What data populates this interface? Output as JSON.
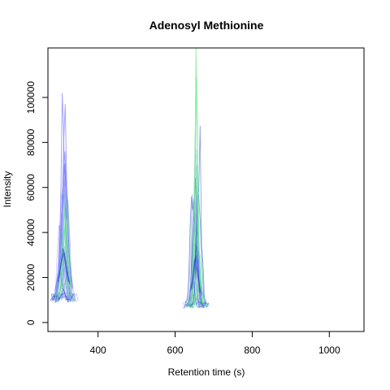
{
  "chart_data": {
    "type": "line",
    "title": "Adenosyl Methionine",
    "xlabel": "Retention time (s)",
    "ylabel": "Intensity",
    "xlim": [
      270,
      1090
    ],
    "ylim": [
      -4000,
      122000
    ],
    "xticks": [
      400,
      600,
      800,
      1000
    ],
    "yticks": [
      0,
      20000,
      40000,
      60000,
      80000,
      100000
    ],
    "xtick_labels": [
      "400",
      "600",
      "800",
      "1000"
    ],
    "ytick_labels": [
      "0",
      "20000",
      "40000",
      "60000",
      "80000",
      "100000"
    ],
    "grid": false,
    "legend": "none",
    "series_colors": {
      "blue": "#7f7fff",
      "green": "#66ee88",
      "darkblue": "#1f3fcf"
    },
    "peaks": [
      {
        "center": 312,
        "width": 42,
        "peak_max": 102000,
        "peak_min": 10000,
        "dominant": "blue"
      },
      {
        "center": 655,
        "width": 40,
        "peak_max": 122000,
        "peak_min": 7000,
        "dominant": "green"
      }
    ],
    "series": [
      {
        "color": "blue",
        "x": [
          290,
          298,
          303,
          307,
          310,
          313,
          317,
          322,
          330
        ],
        "y": [
          15000,
          24000,
          52000,
          102000,
          88000,
          63000,
          41000,
          26000,
          15000
        ]
      },
      {
        "color": "blue",
        "x": [
          292,
          300,
          306,
          311,
          315,
          319,
          325,
          332
        ],
        "y": [
          13000,
          22000,
          45000,
          82000,
          97000,
          60000,
          30000,
          16000
        ]
      },
      {
        "color": "blue",
        "x": [
          295,
          302,
          308,
          313,
          318,
          323,
          330
        ],
        "y": [
          12000,
          26000,
          40000,
          70000,
          58000,
          33000,
          18000
        ]
      },
      {
        "color": "blue",
        "x": [
          288,
          296,
          302,
          308,
          314,
          320,
          326,
          334
        ],
        "y": [
          14000,
          20000,
          36000,
          60000,
          76000,
          52000,
          28000,
          15000
        ]
      },
      {
        "color": "green",
        "x": [
          294,
          302,
          308,
          313,
          318,
          324,
          330
        ],
        "y": [
          12000,
          20000,
          35000,
          50000,
          44000,
          26000,
          14000
        ]
      },
      {
        "color": "green",
        "x": [
          297,
          304,
          309,
          314,
          319,
          326
        ],
        "y": [
          11000,
          18000,
          30000,
          42000,
          32000,
          16000
        ]
      },
      {
        "color": "green",
        "x": [
          300,
          306,
          311,
          316,
          322,
          328
        ],
        "y": [
          13000,
          22000,
          38000,
          46000,
          30000,
          17000
        ]
      },
      {
        "color": "darkblue",
        "x": [
          296,
          303,
          309,
          315,
          321,
          327
        ],
        "y": [
          18000,
          25000,
          33000,
          29000,
          22000,
          17000
        ]
      },
      {
        "color": "darkblue",
        "x": [
          299,
          305,
          311,
          317,
          323
        ],
        "y": [
          20000,
          27000,
          31000,
          24000,
          18000
        ]
      },
      {
        "color": "blue",
        "x": [
          636,
          643,
          648,
          652,
          655,
          658,
          662,
          668,
          676
        ],
        "y": [
          10000,
          18000,
          35000,
          50000,
          61000,
          48000,
          30000,
          16000,
          9000
        ]
      },
      {
        "color": "blue",
        "x": [
          638,
          645,
          650,
          654,
          658,
          663,
          670
        ],
        "y": [
          9000,
          16000,
          28000,
          38000,
          32000,
          20000,
          10000
        ]
      },
      {
        "color": "green",
        "x": [
          640,
          647,
          651,
          654,
          657,
          660,
          664,
          670
        ],
        "y": [
          8000,
          25000,
          60000,
          122000,
          90000,
          45000,
          20000,
          9000
        ]
      },
      {
        "color": "green",
        "x": [
          642,
          648,
          652,
          655,
          658,
          662,
          668
        ],
        "y": [
          9000,
          30000,
          70000,
          109000,
          75000,
          30000,
          12000
        ]
      },
      {
        "color": "green",
        "x": [
          644,
          649,
          653,
          656,
          660,
          666
        ],
        "y": [
          10000,
          22000,
          48000,
          70000,
          40000,
          14000
        ]
      },
      {
        "color": "darkblue",
        "x": [
          640,
          646,
          650,
          654,
          658,
          662,
          668
        ],
        "y": [
          14000,
          20000,
          27000,
          30000,
          25000,
          18000,
          12000
        ]
      },
      {
        "color": "darkblue",
        "x": [
          643,
          648,
          652,
          656,
          660,
          665
        ],
        "y": [
          15000,
          22000,
          28000,
          24000,
          19000,
          13000
        ]
      }
    ]
  }
}
